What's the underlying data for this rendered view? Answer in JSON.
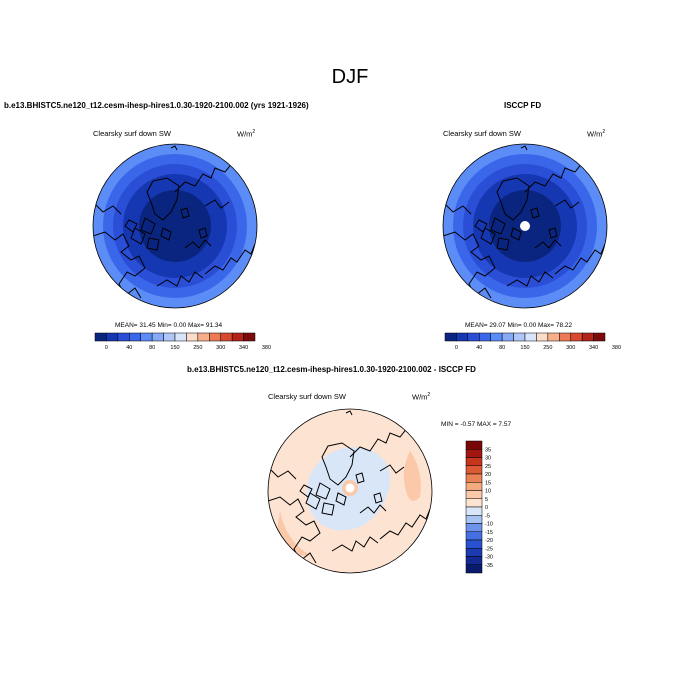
{
  "figure_title": "DJF",
  "panels": {
    "model": {
      "title": "b.e13.BHISTC5.ne120_t12.cesm-ihesp-hires1.0.30-1920-2100.002 (yrs 1921-1926)",
      "variable": "Clearsky surf down SW",
      "units_base": "W/m",
      "units_exp": "2",
      "stats_text": "MEAN=  31.45  Min=    0.00  Max=  91.34"
    },
    "obs": {
      "title": "ISCCP FD",
      "variable": "Clearsky surf down SW",
      "units_base": "W/m",
      "units_exp": "2",
      "stats_text": "MEAN=  29.07  Min=    0.00  Max=  78.22"
    },
    "diff": {
      "title": "b.e13.BHISTC5.ne120_t12.cesm-ihesp-hires1.0.30-1920-2100.002 - ISCCP FD",
      "variable": "Clearsky surf down SW",
      "units_base": "W/m",
      "units_exp": "2",
      "stats_text": "MIN = -0.57 MAX =   7.57"
    }
  },
  "chart_data": [
    {
      "type": "heatmap",
      "title": "b.e13.BHISTC5.ne120_t12.cesm-ihesp-hires1.0.30-1920-2100.002 (yrs 1921-1926)",
      "projection": "polar stereographic, north pole",
      "levels": [
        0,
        40,
        80,
        150,
        250,
        300,
        340,
        380
      ],
      "colors": [
        "#0a2580",
        "#1637b2",
        "#2a4fd6",
        "#3a66ea",
        "#5c8cf5",
        "#86aaf7",
        "#aec7f8",
        "#d9e4fb",
        "#fbdcc8",
        "#f7ae8a",
        "#ec7a55",
        "#d74a2f",
        "#b2231a",
        "#7e0b0b"
      ],
      "mean": 31.45,
      "min": 0.0,
      "max": 91.34
    },
    {
      "type": "heatmap",
      "title": "ISCCP FD",
      "projection": "polar stereographic, north pole",
      "levels": [
        0,
        40,
        80,
        150,
        250,
        300,
        340,
        380
      ],
      "colors": [
        "#0a2580",
        "#1637b2",
        "#2a4fd6",
        "#3a66ea",
        "#5c8cf5",
        "#86aaf7",
        "#aec7f8",
        "#d9e4fb",
        "#fbdcc8",
        "#f7ae8a",
        "#ec7a55",
        "#d74a2f",
        "#b2231a",
        "#7e0b0b"
      ],
      "mean": 29.07,
      "min": 0.0,
      "max": 78.22
    },
    {
      "type": "heatmap",
      "title": "b.e13.BHISTC5.ne120_t12.cesm-ihesp-hires1.0.30-1920-2100.002 - ISCCP FD",
      "projection": "polar stereographic, north pole",
      "levels": [
        -35,
        -30,
        -25,
        -20,
        -15,
        -10,
        -5,
        0,
        5,
        10,
        15,
        20,
        25,
        30,
        35
      ],
      "colors": [
        "#0a1a6e",
        "#142a92",
        "#1c3bb0",
        "#2a52d0",
        "#4470e2",
        "#6e93ec",
        "#a8c3f1",
        "#d9e6f7",
        "#fde3d2",
        "#fbc9aa",
        "#f5a97e",
        "#ea8255",
        "#dc5a35",
        "#c5361d",
        "#a1170f",
        "#7a0707"
      ],
      "min": -0.57,
      "max": 7.57
    }
  ]
}
